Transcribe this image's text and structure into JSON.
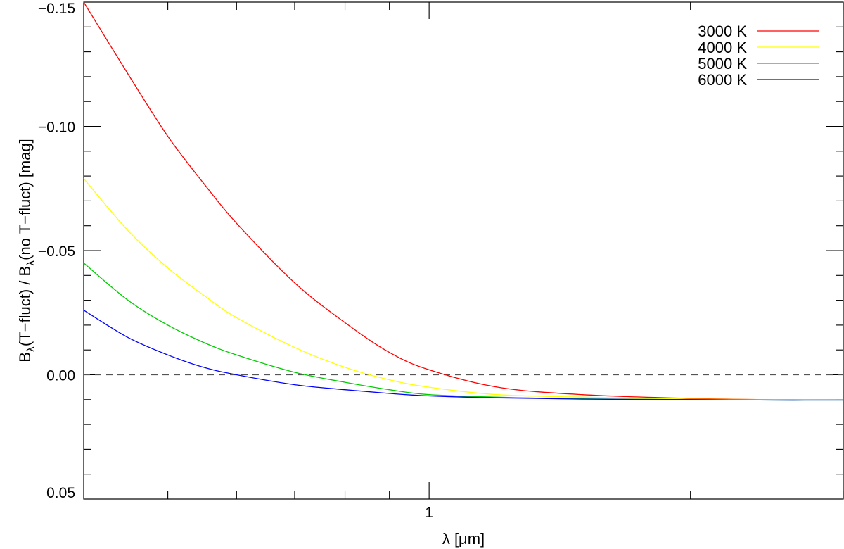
{
  "chart_data": {
    "type": "line",
    "xlabel": "λ [μm]",
    "ylabel_main": "B",
    "ylabel_sub": "λ",
    "ylabel_mid": "(T−fluct) / B",
    "ylabel_tail": "(no T−fluct) [mag]",
    "x_scale": "log",
    "xlim": [
      0.4,
      3.0
    ],
    "ylim": [
      0.05,
      -0.15
    ],
    "y_inverted": true,
    "grid": false,
    "legend_position": "top-right",
    "x_major_ticks": [
      {
        "value": 1,
        "label": "1"
      }
    ],
    "x_minor_ticks": [
      0.5,
      0.6,
      0.7,
      0.8,
      0.9,
      2,
      3
    ],
    "y_major_ticks": [
      {
        "value": -0.15,
        "label": "−0.15"
      },
      {
        "value": -0.1,
        "label": "−0.10"
      },
      {
        "value": -0.05,
        "label": "−0.05"
      },
      {
        "value": 0.0,
        "label": "0.00"
      },
      {
        "value": 0.05,
        "label": "0.05"
      }
    ],
    "y_minor_step": 0.01,
    "reference_line": {
      "y": 0.0,
      "style": "dashed",
      "color": "#555555"
    },
    "series": [
      {
        "name": "3000 K",
        "color": "#ff0000",
        "x": [
          0.4,
          0.45,
          0.5,
          0.55,
          0.6,
          0.7,
          0.8,
          0.9,
          1.0,
          1.2,
          1.5,
          2.0,
          2.5,
          3.0
        ],
        "y": [
          -0.15,
          -0.121,
          -0.096,
          -0.077,
          -0.061,
          -0.037,
          -0.021,
          -0.009,
          -0.002,
          0.005,
          0.008,
          0.0095,
          0.01,
          0.01
        ]
      },
      {
        "name": "4000 K",
        "color": "#ffff00",
        "x": [
          0.4,
          0.45,
          0.5,
          0.55,
          0.6,
          0.7,
          0.8,
          0.9,
          1.0,
          1.2,
          1.5,
          2.0,
          2.5,
          3.0
        ],
        "y": [
          -0.079,
          -0.058,
          -0.043,
          -0.032,
          -0.023,
          -0.011,
          -0.003,
          0.002,
          0.005,
          0.008,
          0.009,
          0.0098,
          0.01,
          0.01
        ]
      },
      {
        "name": "5000 K",
        "color": "#00cc00",
        "x": [
          0.4,
          0.45,
          0.5,
          0.55,
          0.6,
          0.7,
          0.8,
          0.9,
          1.0,
          1.2,
          1.5,
          2.0,
          2.5,
          3.0
        ],
        "y": [
          -0.045,
          -0.03,
          -0.02,
          -0.013,
          -0.008,
          -0.001,
          0.003,
          0.006,
          0.008,
          0.009,
          0.0097,
          0.01,
          0.0102,
          0.0102
        ]
      },
      {
        "name": "6000 K",
        "color": "#0000ff",
        "x": [
          0.4,
          0.45,
          0.5,
          0.55,
          0.6,
          0.7,
          0.8,
          0.9,
          1.0,
          1.2,
          1.5,
          2.0,
          2.5,
          3.0
        ],
        "y": [
          -0.026,
          -0.015,
          -0.008,
          -0.003,
          0.0,
          0.004,
          0.006,
          0.0075,
          0.0085,
          0.0093,
          0.0098,
          0.01,
          0.0102,
          0.0102
        ]
      }
    ]
  }
}
